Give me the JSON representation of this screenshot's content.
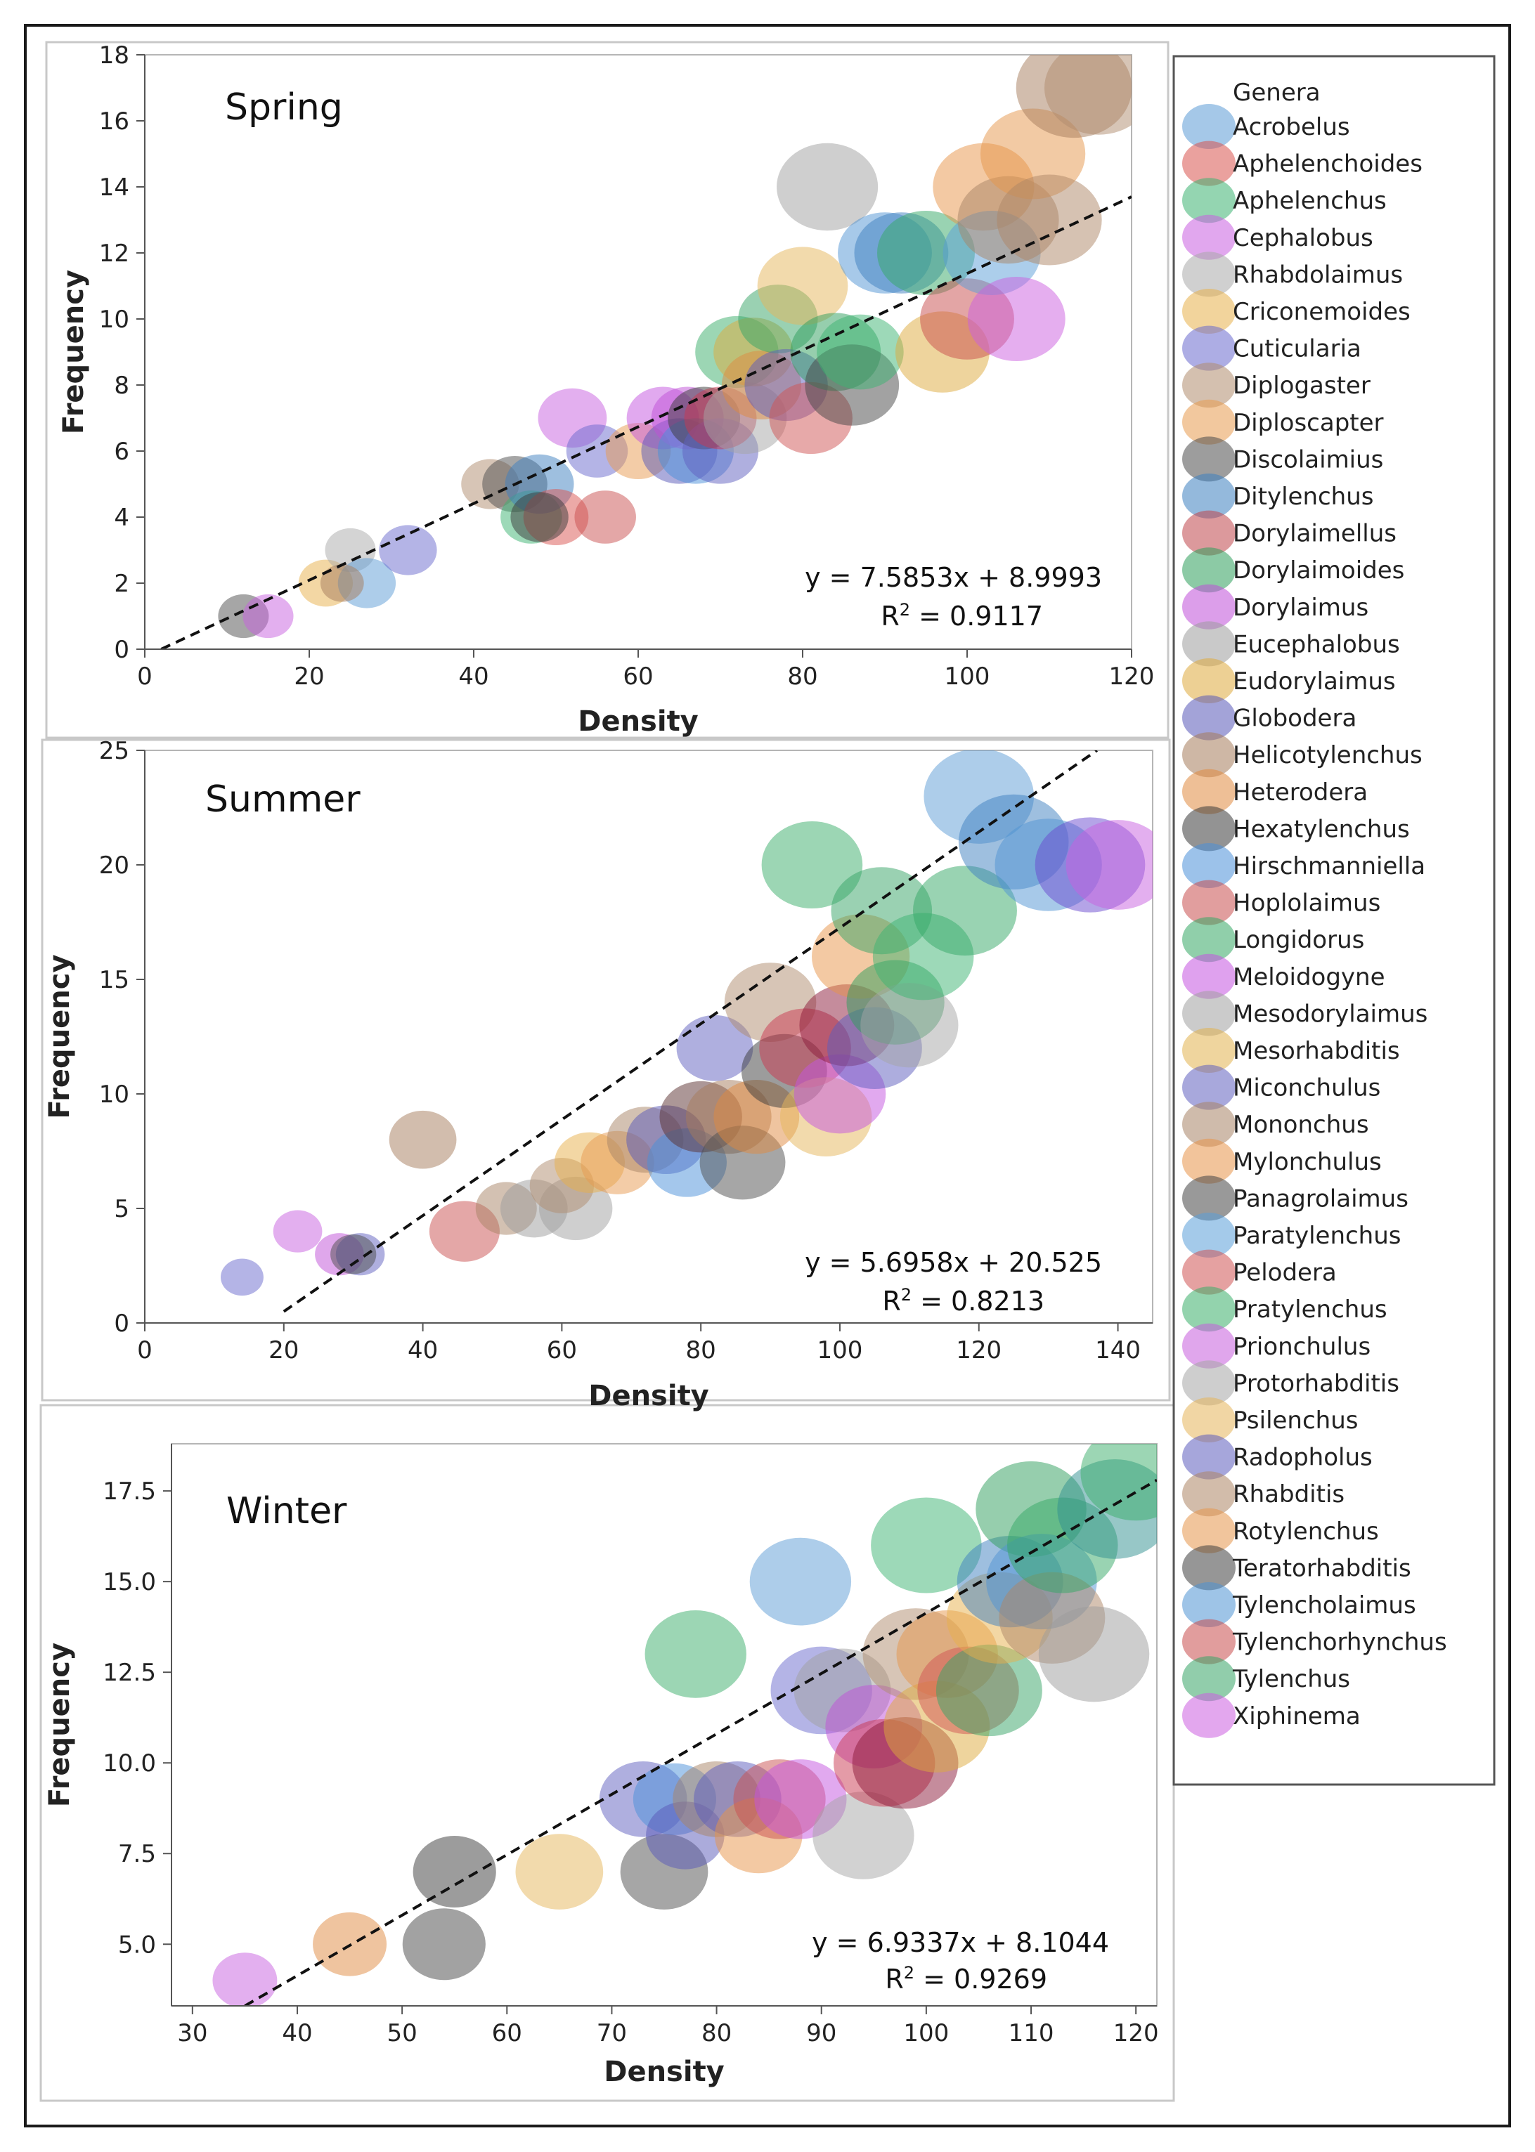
{
  "legend": {
    "title": "Genera",
    "items": [
      {
        "name": "Acrobelus",
        "color": "#5b9bd5"
      },
      {
        "name": "Aphelenchoides",
        "color": "#d9534f"
      },
      {
        "name": "Aphelenchus",
        "color": "#3cb371"
      },
      {
        "name": "Cephalobus",
        "color": "#c85fe0"
      },
      {
        "name": "Rhabdolaimus",
        "color": "#a9a9a9"
      },
      {
        "name": "Criconemoides",
        "color": "#e8b04a"
      },
      {
        "name": "Cuticularia",
        "color": "#6a6acd"
      },
      {
        "name": "Diplogaster",
        "color": "#b08c6e"
      },
      {
        "name": "Diploscapter",
        "color": "#e89a4f"
      },
      {
        "name": "Discolaimius",
        "color": "#4d4d4d"
      },
      {
        "name": "Ditylenchus",
        "color": "#3d7fc0"
      },
      {
        "name": "Dorylaimellus",
        "color": "#c0464a"
      },
      {
        "name": "Dorylaimoides",
        "color": "#2e9e5b"
      },
      {
        "name": "Dorylaimus",
        "color": "#c04fd8"
      },
      {
        "name": "Eucephalobus",
        "color": "#9c9c9c"
      },
      {
        "name": "Eudorylaimus",
        "color": "#deaa3c"
      },
      {
        "name": "Globodera",
        "color": "#5858b8"
      },
      {
        "name": "Helicotylenchus",
        "color": "#a67c5b"
      },
      {
        "name": "Heterodera",
        "color": "#e08a40"
      },
      {
        "name": "Hexatylenchus",
        "color": "#3a3a3a"
      },
      {
        "name": "Hirschmanniella",
        "color": "#4a90d9"
      },
      {
        "name": "Hoplolaimus",
        "color": "#c94f4f"
      },
      {
        "name": "Longidorus",
        "color": "#34a865"
      },
      {
        "name": "Meloidogyne",
        "color": "#c454e0"
      },
      {
        "name": "Mesodorylaimus",
        "color": "#a0a0a0"
      },
      {
        "name": "Mesorhabditis",
        "color": "#e2b24e"
      },
      {
        "name": "Miconchulus",
        "color": "#6060c0"
      },
      {
        "name": "Mononchus",
        "color": "#a88466"
      },
      {
        "name": "Mylonchulus",
        "color": "#e89448"
      },
      {
        "name": "Panagrolaimus",
        "color": "#454545"
      },
      {
        "name": "Paratylenchus",
        "color": "#5a9ed8"
      },
      {
        "name": "Pelodera",
        "color": "#cf5454"
      },
      {
        "name": "Pratylenchus",
        "color": "#3aae6a"
      },
      {
        "name": "Prionchulus",
        "color": "#c75ddc"
      },
      {
        "name": "Protorhabditis",
        "color": "#a5a5a5"
      },
      {
        "name": "Psilenchus",
        "color": "#e5b55a"
      },
      {
        "name": "Radopholus",
        "color": "#5c5cbd"
      },
      {
        "name": "Rhabditis",
        "color": "#ad8565"
      },
      {
        "name": "Rotylenchus",
        "color": "#e6964a"
      },
      {
        "name": "Teratorhabditis",
        "color": "#404040"
      },
      {
        "name": "Tylencholaimus",
        "color": "#4f93d4"
      },
      {
        "name": "Tylenchorhynchus",
        "color": "#c84c4c"
      },
      {
        "name": "Tylenchus",
        "color": "#36a466"
      },
      {
        "name": "Xiphinema",
        "color": "#cc5ee0"
      }
    ]
  },
  "chart_data": [
    {
      "type": "scatter",
      "title": "Spring",
      "xlabel": "Density",
      "ylabel": "Frequency",
      "xlim": [
        0,
        120
      ],
      "ylim": [
        0,
        18
      ],
      "xticks": [
        "0",
        "20",
        "40",
        "60",
        "80",
        "100",
        "120"
      ],
      "yticks": [
        "0",
        "2",
        "4",
        "6",
        "8",
        "10",
        "12",
        "14",
        "16",
        "18"
      ],
      "equation": "y = 7.5853x + 8.9993",
      "r2_label": "R",
      "r2_sup": "2",
      "r2_value": " = 0.9117",
      "trendline": {
        "x": [
          2,
          120
        ],
        "y": [
          0,
          13.7
        ]
      },
      "points": [
        {
          "x": 12,
          "y": 1,
          "r": 1.4,
          "c": "#4d4d4d"
        },
        {
          "x": 15,
          "y": 1,
          "r": 1.4,
          "c": "#c85fe0"
        },
        {
          "x": 22,
          "y": 2,
          "r": 1.5,
          "c": "#e8b04a"
        },
        {
          "x": 25,
          "y": 3,
          "r": 1.4,
          "c": "#a9a9a9"
        },
        {
          "x": 27,
          "y": 2,
          "r": 1.6,
          "c": "#5b9bd5"
        },
        {
          "x": 32,
          "y": 3,
          "r": 1.6,
          "c": "#6a6acd"
        },
        {
          "x": 24,
          "y": 2,
          "r": 1.2,
          "c": "#a67c5b"
        },
        {
          "x": 42,
          "y": 5,
          "r": 1.6,
          "c": "#b08c6e"
        },
        {
          "x": 45,
          "y": 5,
          "r": 1.8,
          "c": "#4d4d4d"
        },
        {
          "x": 47,
          "y": 4,
          "r": 1.7,
          "c": "#3cb371"
        },
        {
          "x": 48,
          "y": 5,
          "r": 1.9,
          "c": "#3d7fc0"
        },
        {
          "x": 50,
          "y": 4,
          "r": 1.8,
          "c": "#d9534f"
        },
        {
          "x": 48,
          "y": 4,
          "r": 1.6,
          "c": "#3a3a3a"
        },
        {
          "x": 52,
          "y": 7,
          "r": 1.9,
          "c": "#c85fe0"
        },
        {
          "x": 55,
          "y": 6,
          "r": 1.7,
          "c": "#6a6acd"
        },
        {
          "x": 56,
          "y": 4,
          "r": 1.7,
          "c": "#c94f4f"
        },
        {
          "x": 60,
          "y": 6,
          "r": 1.8,
          "c": "#e89a4f"
        },
        {
          "x": 63,
          "y": 7,
          "r": 2.0,
          "c": "#c454e0"
        },
        {
          "x": 65,
          "y": 6,
          "r": 2.1,
          "c": "#5858b8"
        },
        {
          "x": 66,
          "y": 7,
          "r": 2.0,
          "c": "#c04fd8"
        },
        {
          "x": 67,
          "y": 6,
          "r": 2.1,
          "c": "#4a90d9"
        },
        {
          "x": 68,
          "y": 7,
          "r": 2.0,
          "c": "#3a3a3a"
        },
        {
          "x": 70,
          "y": 6,
          "r": 2.1,
          "c": "#6060c0"
        },
        {
          "x": 70,
          "y": 7,
          "r": 2.0,
          "c": "#c9374f"
        },
        {
          "x": 72,
          "y": 9,
          "r": 2.3,
          "c": "#3aae6a"
        },
        {
          "x": 73,
          "y": 7,
          "r": 2.3,
          "c": "#a5a5a5"
        },
        {
          "x": 74,
          "y": 9,
          "r": 2.2,
          "c": "#deaa3c"
        },
        {
          "x": 75,
          "y": 8,
          "r": 2.2,
          "c": "#e08a40"
        },
        {
          "x": 77,
          "y": 10,
          "r": 2.2,
          "c": "#36a466"
        },
        {
          "x": 78,
          "y": 8,
          "r": 2.3,
          "c": "#5c5cbd"
        },
        {
          "x": 80,
          "y": 11,
          "r": 2.5,
          "c": "#e5b55a"
        },
        {
          "x": 81,
          "y": 7,
          "r": 2.3,
          "c": "#cf5454"
        },
        {
          "x": 83,
          "y": 14,
          "r": 2.8,
          "c": "#a0a0a0"
        },
        {
          "x": 84,
          "y": 9,
          "r": 2.5,
          "c": "#2e9e5b"
        },
        {
          "x": 86,
          "y": 8,
          "r": 2.6,
          "c": "#454545"
        },
        {
          "x": 87,
          "y": 9,
          "r": 2.4,
          "c": "#3cb371"
        },
        {
          "x": 90,
          "y": 12,
          "r": 2.6,
          "c": "#4f93d4"
        },
        {
          "x": 92,
          "y": 12,
          "r": 2.6,
          "c": "#3d7fc0"
        },
        {
          "x": 95,
          "y": 12,
          "r": 2.7,
          "c": "#34a865"
        },
        {
          "x": 97,
          "y": 9,
          "r": 2.6,
          "c": "#deaa3c"
        },
        {
          "x": 100,
          "y": 10,
          "r": 2.6,
          "c": "#c84c4c"
        },
        {
          "x": 102,
          "y": 14,
          "r": 2.8,
          "c": "#e89448"
        },
        {
          "x": 103,
          "y": 12,
          "r": 2.7,
          "c": "#5a9ed8"
        },
        {
          "x": 105,
          "y": 13,
          "r": 2.8,
          "c": "#a88466"
        },
        {
          "x": 106,
          "y": 10,
          "r": 2.7,
          "c": "#cc5ee0"
        },
        {
          "x": 108,
          "y": 15,
          "r": 2.9,
          "c": "#e6964a"
        },
        {
          "x": 110,
          "y": 13,
          "r": 2.9,
          "c": "#ad8565"
        },
        {
          "x": 113,
          "y": 17,
          "r": 3.2,
          "c": "#a67c5b"
        },
        {
          "x": 116,
          "y": 17,
          "r": 3.0,
          "c": "#b08c6e"
        }
      ]
    },
    {
      "type": "scatter",
      "title": "Summer",
      "xlabel": "Density",
      "ylabel": "Frequency",
      "xlim": [
        0,
        145
      ],
      "ylim": [
        0,
        25
      ],
      "xticks": [
        "0",
        "20",
        "40",
        "60",
        "80",
        "100",
        "120",
        "140"
      ],
      "yticks": [
        "0",
        "5",
        "10",
        "15",
        "20",
        "25"
      ],
      "equation": "y = 5.6958x + 20.525",
      "r2_label": "R",
      "r2_sup": "2",
      "r2_value": " = 0.8213",
      "trendline": {
        "x": [
          20,
          137
        ],
        "y": [
          0.5,
          25
        ]
      },
      "points": [
        {
          "x": 14,
          "y": 2,
          "r": 1.4,
          "c": "#6a6acd"
        },
        {
          "x": 22,
          "y": 4,
          "r": 1.6,
          "c": "#c85fe0"
        },
        {
          "x": 28,
          "y": 3,
          "r": 1.6,
          "c": "#c04fd8"
        },
        {
          "x": 31,
          "y": 3,
          "r": 1.6,
          "c": "#6060c0"
        },
        {
          "x": 30,
          "y": 3,
          "r": 1.5,
          "c": "#4d4d4d"
        },
        {
          "x": 40,
          "y": 8,
          "r": 2.2,
          "c": "#a67c5b"
        },
        {
          "x": 46,
          "y": 4,
          "r": 2.3,
          "c": "#c94f4f"
        },
        {
          "x": 52,
          "y": 5,
          "r": 2.0,
          "c": "#a88466"
        },
        {
          "x": 56,
          "y": 5,
          "r": 2.2,
          "c": "#9c9c9c"
        },
        {
          "x": 62,
          "y": 5,
          "r": 2.4,
          "c": "#a0a0a0"
        },
        {
          "x": 60,
          "y": 6,
          "r": 2.1,
          "c": "#b08c6e"
        },
        {
          "x": 64,
          "y": 7,
          "r": 2.3,
          "c": "#e8b04a"
        },
        {
          "x": 68,
          "y": 7,
          "r": 2.4,
          "c": "#e89a4f"
        },
        {
          "x": 72,
          "y": 8,
          "r": 2.5,
          "c": "#a88466"
        },
        {
          "x": 75,
          "y": 8,
          "r": 2.6,
          "c": "#5858b8"
        },
        {
          "x": 78,
          "y": 7,
          "r": 2.6,
          "c": "#4a90d9"
        },
        {
          "x": 80,
          "y": 9,
          "r": 2.7,
          "c": "#5a3030"
        },
        {
          "x": 82,
          "y": 12,
          "r": 2.5,
          "c": "#6060c0"
        },
        {
          "x": 84,
          "y": 9,
          "r": 2.8,
          "c": "#a67c5b"
        },
        {
          "x": 86,
          "y": 7,
          "r": 2.8,
          "c": "#4d4d4d"
        },
        {
          "x": 88,
          "y": 9,
          "r": 2.8,
          "c": "#e08a40"
        },
        {
          "x": 90,
          "y": 14,
          "r": 3.0,
          "c": "#b08c6e"
        },
        {
          "x": 92,
          "y": 11,
          "r": 2.8,
          "c": "#3a3a3a"
        },
        {
          "x": 95,
          "y": 12,
          "r": 3.0,
          "c": "#c9374f"
        },
        {
          "x": 96,
          "y": 20,
          "r": 3.3,
          "c": "#3aae6a"
        },
        {
          "x": 98,
          "y": 9,
          "r": 3.0,
          "c": "#e5b55a"
        },
        {
          "x": 100,
          "y": 10,
          "r": 3.0,
          "c": "#c454e0"
        },
        {
          "x": 101,
          "y": 13,
          "r": 3.1,
          "c": "#8b1a3a"
        },
        {
          "x": 103,
          "y": 16,
          "r": 3.2,
          "c": "#e89448"
        },
        {
          "x": 105,
          "y": 12,
          "r": 3.1,
          "c": "#5c5cbd"
        },
        {
          "x": 106,
          "y": 18,
          "r": 3.3,
          "c": "#36a466"
        },
        {
          "x": 108,
          "y": 14,
          "r": 3.2,
          "c": "#2e9e5b"
        },
        {
          "x": 110,
          "y": 13,
          "r": 3.2,
          "c": "#a5a5a5"
        },
        {
          "x": 112,
          "y": 16,
          "r": 3.3,
          "c": "#3cb371"
        },
        {
          "x": 118,
          "y": 18,
          "r": 3.4,
          "c": "#34a865"
        },
        {
          "x": 120,
          "y": 23,
          "r": 3.6,
          "c": "#5b9bd5"
        },
        {
          "x": 125,
          "y": 21,
          "r": 3.6,
          "c": "#3d7fc0"
        },
        {
          "x": 130,
          "y": 20,
          "r": 3.5,
          "c": "#4f93d4"
        },
        {
          "x": 136,
          "y": 20,
          "r": 3.6,
          "c": "#6a4ad0"
        },
        {
          "x": 140,
          "y": 20,
          "r": 3.4,
          "c": "#c85fe0"
        }
      ]
    },
    {
      "type": "scatter",
      "title": "Winter",
      "xlabel": "Density",
      "ylabel": "Frequency",
      "xlim": [
        28,
        122
      ],
      "ylim": [
        3.3,
        18.8
      ],
      "xtick_values": [
        30,
        40,
        50,
        60,
        70,
        80,
        90,
        100,
        110,
        120
      ],
      "xticks": [
        "30",
        "40",
        "50",
        "60",
        "70",
        "80",
        "90",
        "100",
        "110",
        "120"
      ],
      "ytick_values": [
        5,
        7.5,
        10,
        12.5,
        15,
        17.5
      ],
      "yticks": [
        "5.0",
        "7.5",
        "10.0",
        "12.5",
        "15.0",
        "17.5"
      ],
      "equation": "y = 6.9337x + 8.1044",
      "r2_label": "R",
      "r2_sup": "2",
      "r2_value": " = 0.9269",
      "trendline": {
        "x": [
          35,
          122
        ],
        "y": [
          3.3,
          17.8
        ]
      },
      "points": [
        {
          "x": 35,
          "y": 4,
          "r": 1.4,
          "c": "#c85fe0"
        },
        {
          "x": 45,
          "y": 5,
          "r": 1.6,
          "c": "#e08a40"
        },
        {
          "x": 54,
          "y": 5,
          "r": 1.8,
          "c": "#454545"
        },
        {
          "x": 55,
          "y": 7,
          "r": 1.8,
          "c": "#3a3a3a"
        },
        {
          "x": 65,
          "y": 7,
          "r": 1.9,
          "c": "#e5b55a"
        },
        {
          "x": 73,
          "y": 9,
          "r": 1.9,
          "c": "#6060c0"
        },
        {
          "x": 75,
          "y": 7,
          "r": 1.9,
          "c": "#4d4d4d"
        },
        {
          "x": 76,
          "y": 9,
          "r": 1.8,
          "c": "#4a90d9"
        },
        {
          "x": 77,
          "y": 8,
          "r": 1.7,
          "c": "#5858b8"
        },
        {
          "x": 78,
          "y": 13,
          "r": 2.2,
          "c": "#3aae6a"
        },
        {
          "x": 80,
          "y": 9,
          "r": 1.9,
          "c": "#a88466"
        },
        {
          "x": 82,
          "y": 9,
          "r": 1.9,
          "c": "#5c5cbd"
        },
        {
          "x": 84,
          "y": 8,
          "r": 1.9,
          "c": "#e89448"
        },
        {
          "x": 86,
          "y": 9,
          "r": 2.0,
          "c": "#c94f4f"
        },
        {
          "x": 88,
          "y": 9,
          "r": 2.0,
          "c": "#c454e0"
        },
        {
          "x": 88,
          "y": 15,
          "r": 2.2,
          "c": "#5b9bd5"
        },
        {
          "x": 90,
          "y": 12,
          "r": 2.2,
          "c": "#6a6acd"
        },
        {
          "x": 92,
          "y": 12,
          "r": 2.1,
          "c": "#a0a0a0"
        },
        {
          "x": 94,
          "y": 8,
          "r": 2.2,
          "c": "#a5a5a5"
        },
        {
          "x": 95,
          "y": 11,
          "r": 2.1,
          "c": "#c04fd8"
        },
        {
          "x": 96,
          "y": 10,
          "r": 2.2,
          "c": "#c9374f"
        },
        {
          "x": 98,
          "y": 10,
          "r": 2.3,
          "c": "#8b1a3a"
        },
        {
          "x": 99,
          "y": 13,
          "r": 2.3,
          "c": "#b08c6e"
        },
        {
          "x": 100,
          "y": 16,
          "r": 2.4,
          "c": "#3cb371"
        },
        {
          "x": 101,
          "y": 11,
          "r": 2.3,
          "c": "#deaa3c"
        },
        {
          "x": 102,
          "y": 13,
          "r": 2.2,
          "c": "#e6964a"
        },
        {
          "x": 104,
          "y": 12,
          "r": 2.2,
          "c": "#cf5454"
        },
        {
          "x": 106,
          "y": 12,
          "r": 2.3,
          "c": "#36a466"
        },
        {
          "x": 107,
          "y": 14,
          "r": 2.3,
          "c": "#e8b04a"
        },
        {
          "x": 108,
          "y": 15,
          "r": 2.3,
          "c": "#3d7fc0"
        },
        {
          "x": 110,
          "y": 17,
          "r": 2.4,
          "c": "#2e9e5b"
        },
        {
          "x": 111,
          "y": 15,
          "r": 2.4,
          "c": "#4f93d4"
        },
        {
          "x": 112,
          "y": 14,
          "r": 2.3,
          "c": "#ad8565"
        },
        {
          "x": 113,
          "y": 16,
          "r": 2.4,
          "c": "#34a865"
        },
        {
          "x": 116,
          "y": 13,
          "r": 2.4,
          "c": "#9c9c9c"
        },
        {
          "x": 118,
          "y": 17,
          "r": 2.5,
          "c": "#2f8f8f"
        },
        {
          "x": 120,
          "y": 18,
          "r": 2.4,
          "c": "#3aae6a"
        }
      ]
    }
  ]
}
